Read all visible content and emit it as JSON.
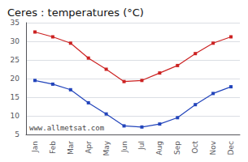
{
  "chart_data": {
    "type": "line",
    "title": "Ceres : temperatures (°C)",
    "categories": [
      "Jan",
      "Feb",
      "Mar",
      "Apr",
      "May",
      "Jun",
      "Jul",
      "Aug",
      "Sep",
      "Oct",
      "Nov",
      "Dec"
    ],
    "series": [
      {
        "color": "#cc2222",
        "marker": "square",
        "values": [
          32.5,
          31.2,
          29.5,
          25.5,
          22.5,
          19.2,
          19.5,
          21.5,
          23.5,
          26.7,
          29.5,
          31.2
        ]
      },
      {
        "color": "#2244bb",
        "marker": "square",
        "values": [
          19.5,
          18.5,
          17.0,
          13.5,
          10.5,
          7.3,
          7.0,
          7.8,
          9.5,
          13.0,
          16.0,
          17.8
        ]
      }
    ],
    "ylim": [
      5,
      35
    ],
    "yticks": [
      5,
      10,
      15,
      20,
      25,
      30,
      35
    ],
    "grid": true,
    "annotations": [
      "www.allmetsat.com"
    ]
  }
}
